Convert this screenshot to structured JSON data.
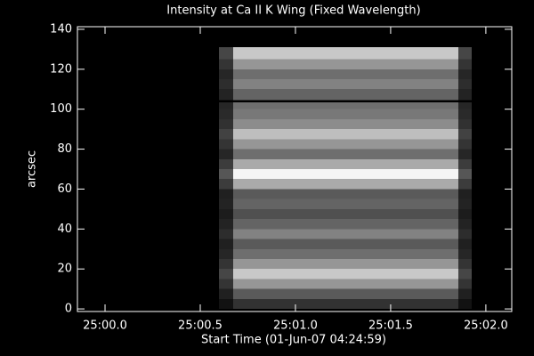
{
  "chart_data": {
    "type": "heatmap",
    "title": "Intensity at Ca II K Wing (Fixed Wavelength)",
    "xlabel": "Start Time (01-Jun-07 04:24:59)",
    "ylabel": "arcsec",
    "xlim": [
      1499.855,
      1502.136
    ],
    "xticks": [
      {
        "value": 1500,
        "label": "25:00.0"
      },
      {
        "value": 1500.5,
        "label": "25:00.5"
      },
      {
        "value": 1501,
        "label": "25:01.0"
      },
      {
        "value": 1501.5,
        "label": "25:01.5"
      },
      {
        "value": 1502,
        "label": "25:02.0"
      }
    ],
    "ylim": [
      -1.3,
      141.3
    ],
    "yticks": [
      0,
      20,
      40,
      60,
      80,
      100,
      120,
      140
    ],
    "xbins": [
      1500.598,
      1500.673,
      1501.855,
      1501.925
    ],
    "ybins": [
      0,
      5,
      10,
      15,
      20,
      25,
      30,
      35,
      40,
      45,
      50,
      55,
      60,
      65,
      70,
      75,
      80,
      85,
      90,
      95,
      100,
      103.5,
      104.5,
      110,
      115,
      120,
      125,
      131
    ],
    "z": [
      [
        18,
        50,
        18
      ],
      [
        32,
        90,
        32
      ],
      [
        52,
        150,
        52
      ],
      [
        70,
        200,
        70
      ],
      [
        52,
        150,
        52
      ],
      [
        38,
        110,
        38
      ],
      [
        32,
        90,
        32
      ],
      [
        45,
        130,
        45
      ],
      [
        35,
        100,
        35
      ],
      [
        28,
        80,
        28
      ],
      [
        35,
        100,
        35
      ],
      [
        32,
        90,
        32
      ],
      [
        60,
        170,
        60
      ],
      [
        86,
        245,
        86
      ],
      [
        60,
        170,
        60
      ],
      [
        38,
        110,
        38
      ],
      [
        52,
        150,
        52
      ],
      [
        66,
        190,
        66
      ],
      [
        49,
        140,
        49
      ],
      [
        42,
        120,
        42
      ],
      [
        38,
        110,
        38
      ],
      [
        0,
        0,
        0
      ],
      [
        35,
        100,
        35
      ],
      [
        45,
        130,
        45
      ],
      [
        38,
        110,
        38
      ],
      [
        52,
        150,
        52
      ],
      [
        70,
        200,
        70
      ]
    ]
  }
}
